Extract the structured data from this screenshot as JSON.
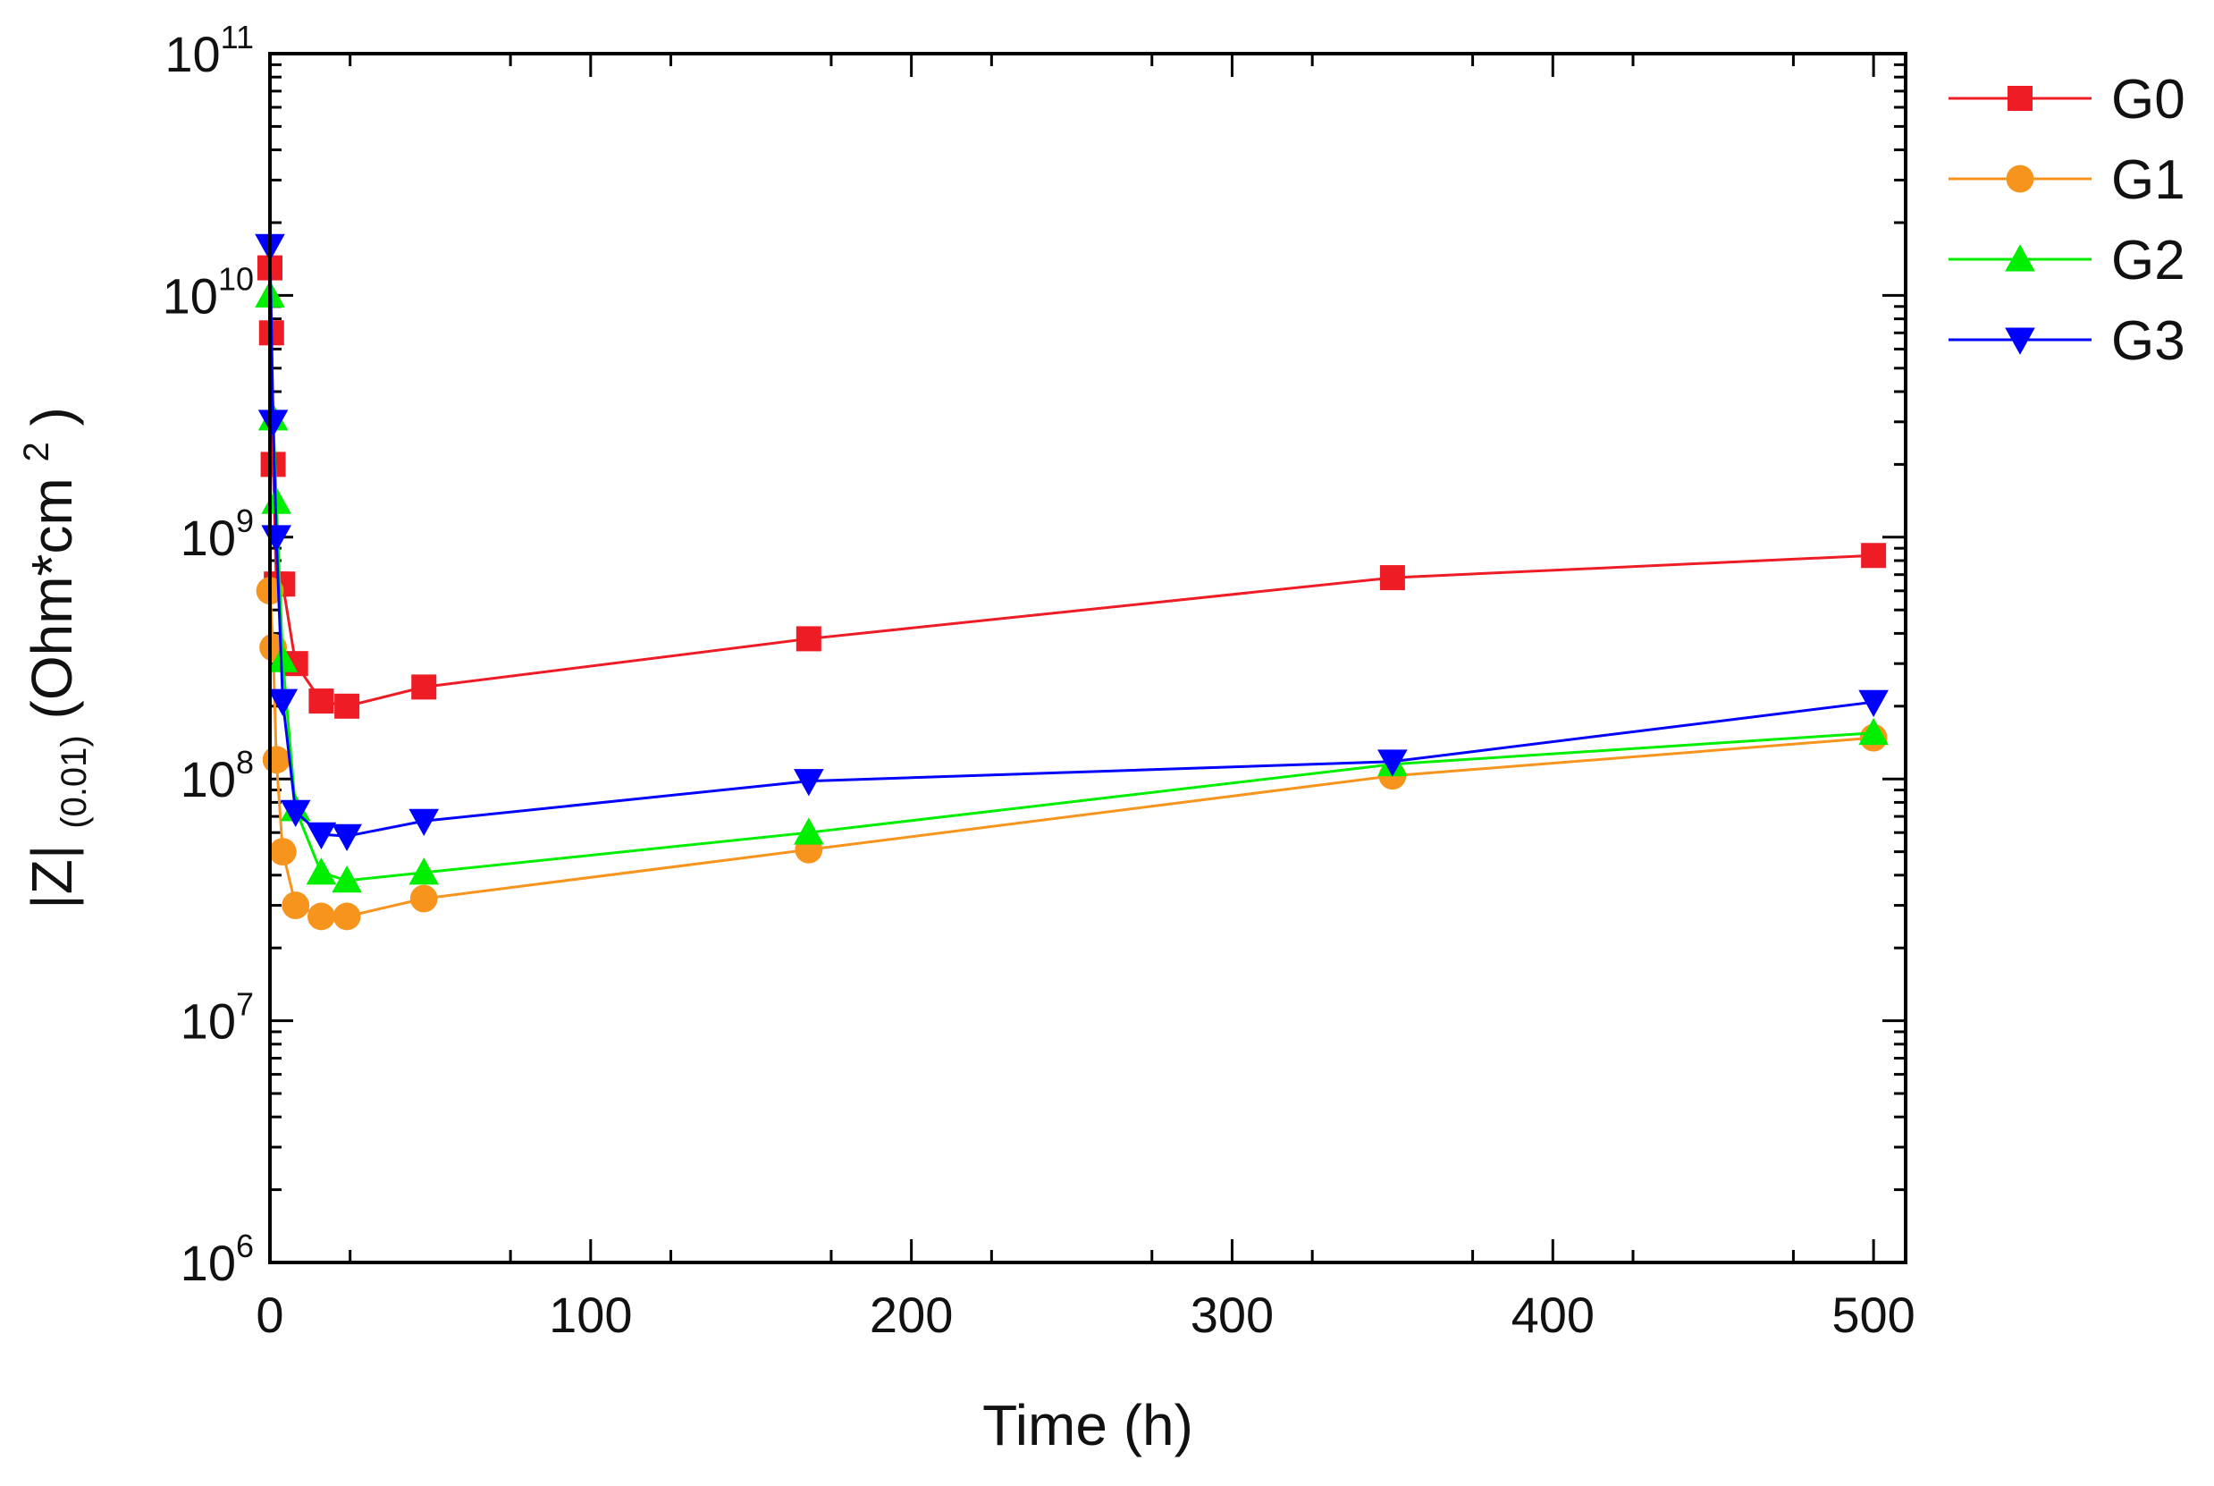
{
  "chart_data": {
    "type": "line",
    "title": "",
    "xlabel": "Time (h)",
    "ylabel": {
      "main": "|Z|",
      "subscript": "(0.01)",
      "unit_prefix": " (Ohm*cm",
      "unit_sup": "2",
      "unit_suffix": ")"
    },
    "xlim": [
      0,
      510
    ],
    "ylim": [
      1000000,
      100000000000
    ],
    "y_scale": "log",
    "x_ticks": [
      0,
      100,
      200,
      300,
      400,
      500
    ],
    "x_tick_labels": [
      "0",
      "100",
      "200",
      "300",
      "400",
      "500"
    ],
    "y_ticks": [
      {
        "value": 1000000,
        "base": "10",
        "exp": "6"
      },
      {
        "value": 10000000,
        "base": "10",
        "exp": "7"
      },
      {
        "value": 100000000,
        "base": "10",
        "exp": "8"
      },
      {
        "value": 1000000000,
        "base": "10",
        "exp": "9"
      },
      {
        "value": 10000000000,
        "base": "10",
        "exp": "10"
      },
      {
        "value": 100000000000,
        "base": "10",
        "exp": "11"
      }
    ],
    "grid": false,
    "legend_position": "top-right, outside plot",
    "series": [
      {
        "name": "G0",
        "color": "#ee1c25",
        "marker": "square",
        "x": [
          0,
          0.5,
          1,
          2,
          4,
          8,
          16,
          24,
          48,
          168,
          350,
          500
        ],
        "y": [
          13000000000,
          7000000000,
          2000000000,
          640000000,
          640000000,
          300000000,
          210000000,
          200000000,
          240000000,
          380000000,
          680000000,
          840000000
        ]
      },
      {
        "name": "G1",
        "color": "#f7941d",
        "marker": "circle",
        "x": [
          0,
          1,
          2,
          4,
          8,
          16,
          24,
          48,
          168,
          350,
          500
        ],
        "y": [
          600000000,
          350000000,
          120000000,
          50000000,
          30000000,
          27000000,
          27000000,
          32000000,
          51000000,
          103000000,
          148000000
        ]
      },
      {
        "name": "G2",
        "color": "#00ee00",
        "marker": "triangle-up",
        "x": [
          0,
          1,
          2,
          4,
          8,
          16,
          24,
          48,
          168,
          350,
          500
        ],
        "y": [
          10000000000,
          3100000000,
          1400000000,
          310000000,
          75000000,
          41000000,
          38000000,
          41000000,
          60000000,
          115000000,
          155000000
        ]
      },
      {
        "name": "G3",
        "color": "#0000ff",
        "marker": "triangle-down",
        "x": [
          0,
          1,
          2,
          4,
          8,
          16,
          24,
          48,
          168,
          350,
          500
        ],
        "y": [
          16000000000,
          3000000000,
          1000000000,
          210000000,
          73000000,
          59000000,
          58000000,
          67000000,
          98000000,
          118000000,
          208000000
        ]
      }
    ]
  }
}
